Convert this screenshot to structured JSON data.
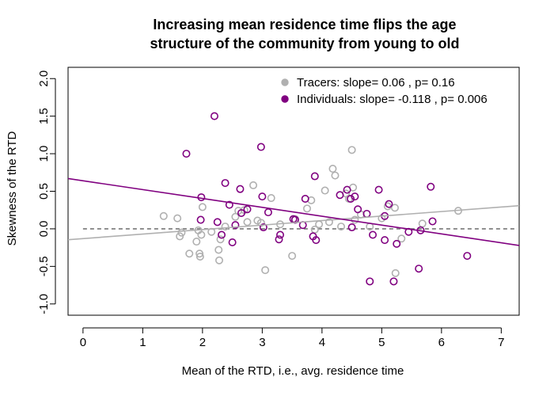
{
  "chart_data": {
    "type": "scatter",
    "title_line1": "Increasing mean residence time flips the age",
    "title_line2": "structure of the community from young to old",
    "xlabel": "Mean of the RTD, i.e., avg. residence time",
    "ylabel": "Skewness of the RTD",
    "xlim": [
      -0.25,
      7.3
    ],
    "ylim": [
      -1.15,
      2.15
    ],
    "xticks": [
      "0",
      "1",
      "2",
      "3",
      "4",
      "5",
      "6",
      "7"
    ],
    "yticks": [
      "-1.0",
      "-0.5",
      "0.0",
      "0.5",
      "1.0",
      "1.5",
      "2.0"
    ],
    "grid": false,
    "legend_position": "top-right",
    "reference_line_y": 0,
    "series": [
      {
        "name": "Tracers: slope= 0.06 , p= 0.16",
        "color": "#b0b0b0",
        "fit": {
          "intercept": -0.13,
          "slope": 0.06
        },
        "points": [
          [
            1.35,
            0.17
          ],
          [
            1.58,
            0.14
          ],
          [
            1.62,
            -0.1
          ],
          [
            1.65,
            -0.05
          ],
          [
            1.78,
            -0.33
          ],
          [
            1.9,
            -0.17
          ],
          [
            1.93,
            -0.02
          ],
          [
            1.95,
            -0.33
          ],
          [
            1.96,
            -0.37
          ],
          [
            2.0,
            0.29
          ],
          [
            1.98,
            -0.08
          ],
          [
            2.15,
            -0.04
          ],
          [
            2.28,
            -0.42
          ],
          [
            2.27,
            -0.28
          ],
          [
            2.3,
            -0.14
          ],
          [
            2.38,
            0.03
          ],
          [
            2.55,
            0.16
          ],
          [
            2.6,
            0.24
          ],
          [
            2.7,
            0.25
          ],
          [
            2.75,
            0.09
          ],
          [
            2.85,
            0.58
          ],
          [
            2.92,
            0.11
          ],
          [
            2.98,
            0.08
          ],
          [
            3.05,
            -0.55
          ],
          [
            3.15,
            0.41
          ],
          [
            3.3,
            0.06
          ],
          [
            3.5,
            -0.36
          ],
          [
            3.55,
            0.13
          ],
          [
            3.75,
            0.27
          ],
          [
            3.82,
            0.38
          ],
          [
            3.88,
            -0.01
          ],
          [
            3.95,
            0.06
          ],
          [
            4.05,
            0.51
          ],
          [
            4.12,
            0.09
          ],
          [
            4.18,
            0.8
          ],
          [
            4.22,
            0.71
          ],
          [
            4.32,
            0.03
          ],
          [
            4.4,
            0.47
          ],
          [
            4.45,
            0.4
          ],
          [
            4.5,
            1.05
          ],
          [
            4.52,
            0.55
          ],
          [
            4.55,
            0.12
          ],
          [
            4.65,
            0.19
          ],
          [
            4.8,
            0.03
          ],
          [
            5.0,
            0.14
          ],
          [
            5.1,
            0.3
          ],
          [
            5.22,
            0.28
          ],
          [
            5.23,
            -0.59
          ],
          [
            5.33,
            -0.13
          ],
          [
            5.68,
            0.07
          ],
          [
            6.28,
            0.24
          ]
        ]
      },
      {
        "name": "Individuals: slope= -0.118 , p= 0.006",
        "color": "#800080",
        "fit": {
          "intercept": 0.64,
          "slope": -0.118
        },
        "points": [
          [
            1.73,
            1.0
          ],
          [
            1.98,
            0.42
          ],
          [
            1.97,
            0.12
          ],
          [
            2.2,
            1.5
          ],
          [
            2.25,
            0.09
          ],
          [
            2.32,
            -0.08
          ],
          [
            2.38,
            0.61
          ],
          [
            2.45,
            0.32
          ],
          [
            2.5,
            -0.18
          ],
          [
            2.55,
            0.05
          ],
          [
            2.65,
            0.21
          ],
          [
            2.63,
            0.53
          ],
          [
            2.75,
            0.26
          ],
          [
            2.98,
            1.09
          ],
          [
            3.0,
            0.43
          ],
          [
            3.02,
            0.02
          ],
          [
            3.1,
            0.22
          ],
          [
            3.28,
            -0.14
          ],
          [
            3.3,
            -0.08
          ],
          [
            3.52,
            0.13
          ],
          [
            3.55,
            0.12
          ],
          [
            3.68,
            0.05
          ],
          [
            3.72,
            0.4
          ],
          [
            3.85,
            -0.1
          ],
          [
            3.88,
            0.7
          ],
          [
            3.9,
            -0.15
          ],
          [
            4.3,
            0.45
          ],
          [
            4.42,
            0.52
          ],
          [
            4.48,
            0.4
          ],
          [
            4.5,
            0.02
          ],
          [
            4.55,
            0.43
          ],
          [
            4.6,
            0.26
          ],
          [
            4.75,
            0.2
          ],
          [
            4.8,
            -0.7
          ],
          [
            4.85,
            -0.08
          ],
          [
            4.95,
            0.52
          ],
          [
            5.05,
            0.17
          ],
          [
            5.05,
            -0.15
          ],
          [
            5.12,
            0.33
          ],
          [
            5.2,
            -0.7
          ],
          [
            5.25,
            -0.2
          ],
          [
            5.45,
            -0.04
          ],
          [
            5.62,
            -0.53
          ],
          [
            5.65,
            -0.02
          ],
          [
            5.82,
            0.56
          ],
          [
            5.85,
            0.1
          ],
          [
            6.43,
            -0.36
          ]
        ]
      }
    ]
  }
}
